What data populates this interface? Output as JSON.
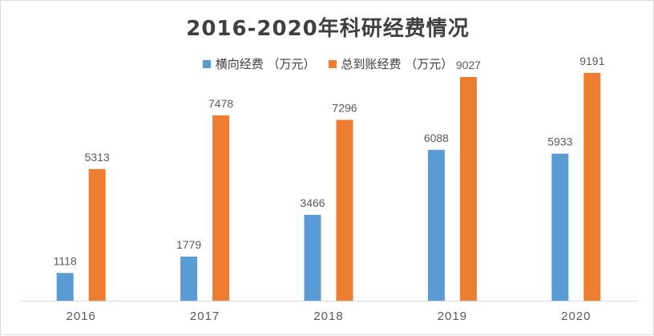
{
  "chart_data": {
    "type": "bar",
    "title": "2016-2020年科研经费情况",
    "categories": [
      "2016",
      "2017",
      "2018",
      "2019",
      "2020"
    ],
    "series": [
      {
        "name": "横向经费 （万元）",
        "color": "#5b9bd5",
        "values": [
          1118,
          1779,
          3466,
          6088,
          5933
        ]
      },
      {
        "name": "总到账经费 （万元）",
        "color": "#ed7d31",
        "values": [
          5313,
          7478,
          7296,
          9027,
          9191
        ]
      }
    ],
    "ylim": [
      0,
      11000
    ],
    "grid": false,
    "legend_position": "top",
    "data_labels": true,
    "xlabel": "",
    "ylabel": ""
  }
}
